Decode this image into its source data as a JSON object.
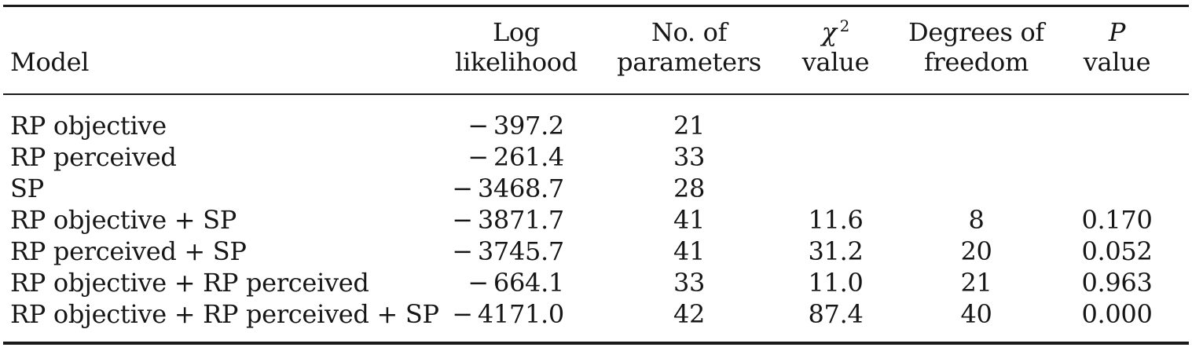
{
  "page": {
    "background": "#ffffff",
    "text_color": "#161616",
    "rule_color": "#1a1a1a"
  },
  "table": {
    "header": {
      "model": {
        "line2": "Model"
      },
      "log_likelihood": {
        "line1": "Log",
        "line2": "likelihood"
      },
      "parameters": {
        "line1": "No. of",
        "line2": "parameters"
      },
      "chi_square": {
        "symbol": "χ",
        "superscript": "2",
        "line2": "value"
      },
      "degrees_of_freedom": {
        "line1": "Degrees of",
        "line2": "freedom"
      },
      "p_value": {
        "line1": "P",
        "line2": "value"
      }
    },
    "rows": [
      {
        "model": "RP objective",
        "log_likelihood": "− 397.2",
        "parameters": "21",
        "chi_square": "",
        "degrees_of_freedom": "",
        "p_value": ""
      },
      {
        "model": "RP perceived",
        "log_likelihood": "− 261.4",
        "parameters": "33",
        "chi_square": "",
        "degrees_of_freedom": "",
        "p_value": ""
      },
      {
        "model": "SP",
        "log_likelihood": "− 3468.7",
        "parameters": "28",
        "chi_square": "",
        "degrees_of_freedom": "",
        "p_value": ""
      },
      {
        "model": "RP objective + SP",
        "log_likelihood": "− 3871.7",
        "parameters": "41",
        "chi_square": "11.6",
        "degrees_of_freedom": "8",
        "p_value": "0.170"
      },
      {
        "model": "RP perceived + SP",
        "log_likelihood": "− 3745.7",
        "parameters": "41",
        "chi_square": "31.2",
        "degrees_of_freedom": "20",
        "p_value": "0.052"
      },
      {
        "model": "RP objective + RP perceived",
        "log_likelihood": "− 664.1",
        "parameters": "33",
        "chi_square": "11.0",
        "degrees_of_freedom": "21",
        "p_value": "0.963"
      },
      {
        "model": "RP objective + RP perceived + SP",
        "log_likelihood": "− 4171.0",
        "parameters": "42",
        "chi_square": "87.4",
        "degrees_of_freedom": "40",
        "p_value": "0.000"
      }
    ]
  }
}
